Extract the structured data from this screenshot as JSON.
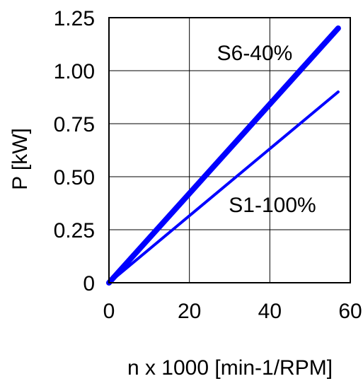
{
  "chart_data": {
    "type": "line",
    "xlabel": "n x 1000 [min-1/RPM]",
    "ylabel": "P [kW]",
    "xlim": [
      0,
      60
    ],
    "ylim": [
      0,
      1.25
    ],
    "x_ticks": [
      "0",
      "20",
      "40",
      "60"
    ],
    "y_ticks": [
      "0",
      "0.25",
      "0.50",
      "0.75",
      "1.00",
      "1.25"
    ],
    "grid": true,
    "series": [
      {
        "name": "S6-40%",
        "x": [
          0,
          57
        ],
        "y": [
          0,
          1.2
        ],
        "color": "#0000ff",
        "line_weight": "heavy"
      },
      {
        "name": "S1-100%",
        "x": [
          0,
          57
        ],
        "y": [
          0,
          0.9
        ],
        "color": "#0000ff",
        "line_weight": "light"
      }
    ]
  }
}
